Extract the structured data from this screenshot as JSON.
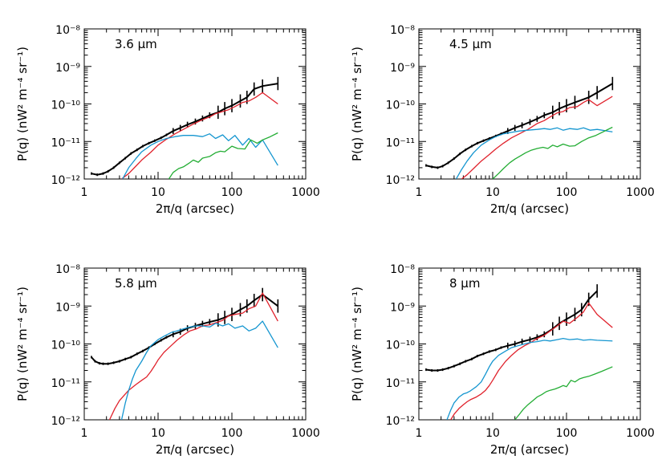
{
  "colors": {
    "black": "#000000",
    "red": "#e0222c",
    "blue": "#1596d0",
    "green": "#23ad34"
  },
  "chart_data": [
    {
      "type": "line",
      "panel_label": "3.6 μm",
      "xlabel": "2π/q (arcsec)",
      "ylabel": "P(q) (nW² m⁻⁴ sr⁻¹)",
      "xscale": "log",
      "yscale": "log",
      "xlim": [
        1,
        1000
      ],
      "ylim": [
        1e-12,
        1e-08
      ],
      "x_ticks": [
        "1",
        "10",
        "100",
        "1000"
      ],
      "y_ticks": [
        "10⁻¹²",
        "10⁻¹¹",
        "10⁻¹⁰",
        "10⁻⁹",
        "10⁻⁸"
      ],
      "series": [
        {
          "color": "black",
          "style": "errorbars",
          "x": [
            1.25,
            1.5,
            1.8,
            2.1,
            2.5,
            3,
            3.6,
            4.3,
            5.2,
            6.2,
            7.5,
            9,
            11,
            13,
            16,
            20,
            25,
            32,
            40,
            50,
            65,
            80,
            100,
            130,
            160,
            200,
            260,
            420
          ],
          "y": [
            1.4e-12,
            1.3e-12,
            1.4e-12,
            1.6e-12,
            2e-12,
            2.7e-12,
            3.6e-12,
            4.8e-12,
            6e-12,
            7.5e-12,
            9e-12,
            1.05e-11,
            1.25e-11,
            1.5e-11,
            1.9e-11,
            2.3e-11,
            2.8e-11,
            3.4e-11,
            4.1e-11,
            5e-11,
            6e-11,
            7.5e-11,
            9e-11,
            1.2e-10,
            1.5e-10,
            2.5e-10,
            3e-10,
            3.5e-10
          ]
        },
        {
          "color": "red",
          "style": "line",
          "x": [
            3.2,
            4,
            5,
            6,
            8,
            10,
            13,
            17,
            22,
            30,
            40,
            50,
            60,
            75,
            90,
            110,
            140,
            170,
            210,
            260,
            420
          ],
          "y": [
            1e-12,
            1.4e-12,
            2.2e-12,
            3.2e-12,
            5.2e-12,
            8e-12,
            1.15e-11,
            1.6e-11,
            2.1e-11,
            2.9e-11,
            3.8e-11,
            4.5e-11,
            5.5e-11,
            6.3e-11,
            7e-11,
            8.5e-11,
            1.1e-10,
            1.2e-10,
            1.5e-10,
            2e-10,
            1e-10
          ]
        },
        {
          "color": "blue",
          "style": "line",
          "x": [
            3.3,
            4,
            5,
            6,
            8,
            10,
            13,
            17,
            22,
            30,
            40,
            50,
            60,
            75,
            90,
            110,
            140,
            170,
            210,
            260,
            420
          ],
          "y": [
            1e-12,
            2e-12,
            3.5e-12,
            5.3e-12,
            8e-12,
            1e-11,
            1.2e-11,
            1.35e-11,
            1.45e-11,
            1.45e-11,
            1.35e-11,
            1.6e-11,
            1.2e-11,
            1.5e-11,
            1.05e-11,
            1.45e-11,
            8e-12,
            1.2e-11,
            7e-12,
            1.1e-11,
            2.3e-12
          ]
        },
        {
          "color": "green",
          "style": "line",
          "x": [
            14,
            16,
            19,
            22,
            26,
            30,
            35,
            40,
            50,
            60,
            70,
            80,
            100,
            120,
            150,
            180,
            220,
            260,
            320,
            420
          ],
          "y": [
            1e-12,
            1.5e-12,
            1.9e-12,
            2.1e-12,
            2.6e-12,
            3.2e-12,
            2.8e-12,
            3.6e-12,
            4e-12,
            5e-12,
            5.5e-12,
            5.3e-12,
            7.5e-12,
            6.5e-12,
            6.3e-12,
            1.1e-11,
            9e-12,
            1.1e-11,
            1.3e-11,
            1.7e-11
          ]
        }
      ]
    },
    {
      "type": "line",
      "panel_label": "4.5 μm",
      "xlabel": "2π/q (arcsec)",
      "ylabel": "P(q) (nW² m⁻⁴ sr⁻¹)",
      "xscale": "log",
      "yscale": "log",
      "xlim": [
        1,
        1000
      ],
      "ylim": [
        1e-12,
        1e-08
      ],
      "x_ticks": [
        "1",
        "10",
        "100",
        "1000"
      ],
      "y_ticks": [
        "10⁻¹²",
        "10⁻¹¹",
        "10⁻¹⁰",
        "10⁻⁹",
        "10⁻⁸"
      ],
      "series": [
        {
          "color": "black",
          "style": "errorbars",
          "x": [
            1.25,
            1.5,
            1.8,
            2.1,
            2.5,
            3,
            3.6,
            4.3,
            5.2,
            6.2,
            7.5,
            9,
            11,
            13,
            16,
            20,
            25,
            32,
            40,
            50,
            65,
            80,
            100,
            130,
            200,
            260,
            420
          ],
          "y": [
            2.3e-12,
            2.1e-12,
            2e-12,
            2.2e-12,
            2.7e-12,
            3.5e-12,
            4.7e-12,
            6e-12,
            7.5e-12,
            9e-12,
            1.05e-11,
            1.2e-11,
            1.4e-11,
            1.6e-11,
            1.9e-11,
            2.3e-11,
            2.7e-11,
            3.3e-11,
            4e-11,
            5e-11,
            6e-11,
            7.5e-11,
            9e-11,
            1.1e-10,
            1.5e-10,
            2e-10,
            3.5e-10
          ]
        },
        {
          "color": "red",
          "style": "line",
          "x": [
            3.8,
            4.5,
            5.5,
            7,
            9,
            11,
            14,
            18,
            23,
            30,
            40,
            50,
            60,
            75,
            90,
            110,
            140,
            170,
            200,
            260,
            420
          ],
          "y": [
            1e-12,
            1.3e-12,
            1.9e-12,
            3e-12,
            4.5e-12,
            6.3e-12,
            9e-12,
            1.25e-11,
            1.6e-11,
            2.1e-11,
            3e-11,
            3.6e-11,
            4.5e-11,
            5.8e-11,
            6.3e-11,
            8e-11,
            8.5e-11,
            1.1e-10,
            1.3e-10,
            9e-11,
            1.6e-10
          ]
        },
        {
          "color": "blue",
          "style": "line",
          "x": [
            3.2,
            3.8,
            4.5,
            5.5,
            7,
            9,
            11,
            14,
            18,
            23,
            30,
            40,
            50,
            60,
            75,
            90,
            110,
            140,
            170,
            210,
            260,
            420
          ],
          "y": [
            1e-12,
            1.8e-12,
            3e-12,
            5e-12,
            8e-12,
            1.1e-11,
            1.35e-11,
            1.6e-11,
            1.75e-11,
            1.9e-11,
            2e-11,
            2.1e-11,
            2.2e-11,
            2.1e-11,
            2.3e-11,
            2e-11,
            2.2e-11,
            2.1e-11,
            2.3e-11,
            2e-11,
            2.1e-11,
            1.8e-11
          ]
        },
        {
          "color": "green",
          "style": "line",
          "x": [
            10,
            12,
            14,
            17,
            20,
            24,
            28,
            33,
            40,
            48,
            56,
            65,
            75,
            90,
            110,
            130,
            160,
            200,
            250,
            420
          ],
          "y": [
            1e-12,
            1.4e-12,
            1.9e-12,
            2.7e-12,
            3.4e-12,
            4.2e-12,
            5e-12,
            5.8e-12,
            6.5e-12,
            7e-12,
            6.5e-12,
            8e-12,
            7.2e-12,
            8.5e-12,
            7.5e-12,
            7.7e-12,
            1e-11,
            1.25e-11,
            1.45e-11,
            2.4e-11
          ]
        }
      ]
    },
    {
      "type": "line",
      "panel_label": "5.8 μm",
      "xlabel": "2π/q (arcsec)",
      "ylabel": "P(q) (nW² m⁻⁴ sr⁻¹)",
      "xscale": "log",
      "yscale": "log",
      "xlim": [
        1,
        1000
      ],
      "ylim": [
        1e-12,
        1e-08
      ],
      "x_ticks": [
        "1",
        "10",
        "100",
        "1000"
      ],
      "y_ticks": [
        "10⁻¹²",
        "10⁻¹¹",
        "10⁻¹⁰",
        "10⁻⁹",
        "10⁻⁸"
      ],
      "series": [
        {
          "color": "black",
          "style": "errorbars",
          "x": [
            1.25,
            1.4,
            1.6,
            1.8,
            2.1,
            2.5,
            3,
            3.6,
            4.3,
            5.2,
            6.2,
            7.5,
            9,
            11,
            13,
            16,
            20,
            25,
            32,
            40,
            50,
            65,
            80,
            100,
            130,
            160,
            200,
            260,
            420
          ],
          "y": [
            4.5e-11,
            3.5e-11,
            3.1e-11,
            3e-11,
            3e-11,
            3.2e-11,
            3.5e-11,
            4e-11,
            4.5e-11,
            5.5e-11,
            6.5e-11,
            8e-11,
            1e-10,
            1.25e-10,
            1.5e-10,
            1.8e-10,
            2.1e-10,
            2.6e-10,
            3e-10,
            3.4e-10,
            3.8e-10,
            4.3e-10,
            5e-10,
            6e-10,
            8e-10,
            1e-09,
            1.4e-09,
            2e-09,
            1e-09
          ]
        },
        {
          "color": "red",
          "style": "line",
          "x": [
            2.2,
            2.6,
            3,
            3.5,
            4,
            4.5,
            5,
            6,
            7,
            8,
            9,
            10,
            12,
            15,
            18,
            22,
            27,
            33,
            40,
            50,
            60,
            75,
            90,
            110,
            140,
            170,
            210,
            260,
            420
          ],
          "y": [
            1e-12,
            2e-12,
            3.2e-12,
            4.5e-12,
            6e-12,
            7.2e-12,
            8.5e-12,
            1.1e-11,
            1.35e-11,
            1.9e-11,
            2.7e-11,
            3.8e-11,
            6e-11,
            9e-11,
            1.25e-10,
            1.7e-10,
            2.2e-10,
            2.5e-10,
            3e-10,
            3.2e-10,
            3.6e-10,
            4.2e-10,
            5.5e-10,
            6e-10,
            6.5e-10,
            8.5e-10,
            1e-09,
            2.2e-09,
            4e-10
          ]
        },
        {
          "color": "blue",
          "style": "line",
          "x": [
            3.2,
            3.6,
            4,
            4.5,
            5,
            6,
            7,
            8,
            10,
            12,
            15,
            18,
            22,
            27,
            33,
            40,
            50,
            60,
            75,
            90,
            110,
            140,
            170,
            210,
            260,
            420
          ],
          "y": [
            1e-12,
            2.8e-12,
            6e-12,
            1.2e-11,
            2e-11,
            3.5e-11,
            6e-11,
            9e-11,
            1.3e-10,
            1.6e-10,
            2e-10,
            2.2e-10,
            2.5e-10,
            2.8e-10,
            3e-10,
            3e-10,
            2.8e-10,
            3.5e-10,
            3e-10,
            3.4e-10,
            2.6e-10,
            3e-10,
            2.2e-10,
            2.6e-10,
            4e-10,
            8e-11
          ]
        }
      ]
    },
    {
      "type": "line",
      "panel_label": "8 μm",
      "xlabel": "2π/q (arcsec)",
      "ylabel": "P(q) (nW² m⁻⁴ sr⁻¹)",
      "xscale": "log",
      "yscale": "log",
      "xlim": [
        1,
        1000
      ],
      "ylim": [
        1e-12,
        1e-08
      ],
      "x_ticks": [
        "1",
        "10",
        "100",
        "1000"
      ],
      "y_ticks": [
        "10⁻¹²",
        "10⁻¹¹",
        "10⁻¹⁰",
        "10⁻⁹",
        "10⁻⁸"
      ],
      "series": [
        {
          "color": "black",
          "style": "errorbars",
          "x": [
            1.25,
            1.5,
            1.8,
            2.1,
            2.5,
            3,
            3.6,
            4.3,
            5.2,
            6.2,
            7.5,
            9,
            11,
            13,
            16,
            20,
            25,
            32,
            40,
            50,
            65,
            80,
            100,
            130,
            160,
            200,
            260
          ],
          "y": [
            2.1e-11,
            2e-11,
            2e-11,
            2.1e-11,
            2.3e-11,
            2.6e-11,
            3e-11,
            3.5e-11,
            4e-11,
            4.8e-11,
            5.5e-11,
            6.3e-11,
            7e-11,
            8e-11,
            9e-11,
            1e-10,
            1.15e-10,
            1.3e-10,
            1.5e-10,
            1.8e-10,
            2.5e-10,
            3.5e-10,
            4.5e-10,
            6e-10,
            8e-10,
            1.5e-09,
            2.5e-09
          ]
        },
        {
          "color": "red",
          "style": "line",
          "x": [
            2.7,
            3,
            3.5,
            4,
            4.5,
            5,
            6,
            7,
            8,
            9,
            10,
            12,
            15,
            18,
            22,
            27,
            33,
            40,
            50,
            60,
            75,
            90,
            110,
            140,
            170,
            200,
            260,
            420
          ],
          "y": [
            1e-12,
            1.4e-12,
            2e-12,
            2.5e-12,
            3e-12,
            3.4e-12,
            4e-12,
            4.8e-12,
            6e-12,
            8e-12,
            1.1e-11,
            2e-11,
            3.5e-11,
            5e-11,
            7e-11,
            9e-11,
            1.1e-10,
            1.4e-10,
            1.7e-10,
            2.2e-10,
            3e-10,
            4e-10,
            3.5e-10,
            5e-10,
            7e-10,
            1.2e-09,
            6e-10,
            2.7e-10
          ]
        },
        {
          "color": "blue",
          "style": "line",
          "x": [
            2.4,
            2.7,
            3,
            3.5,
            4,
            4.5,
            5,
            6,
            7,
            8,
            9,
            10,
            12,
            15,
            18,
            22,
            27,
            33,
            40,
            50,
            60,
            75,
            90,
            110,
            140,
            170,
            210,
            260,
            420
          ],
          "y": [
            1e-12,
            1.8e-12,
            2.8e-12,
            4e-12,
            4.8e-12,
            5.2e-12,
            5.8e-12,
            7.5e-12,
            1e-11,
            1.6e-11,
            2.5e-11,
            3.5e-11,
            5e-11,
            6.5e-11,
            8e-11,
            9e-11,
            1e-10,
            1.1e-10,
            1.15e-10,
            1.25e-10,
            1.2e-10,
            1.3e-10,
            1.4e-10,
            1.3e-10,
            1.35e-10,
            1.25e-10,
            1.3e-10,
            1.25e-10,
            1.2e-10
          ]
        },
        {
          "color": "green",
          "style": "line",
          "x": [
            20,
            23,
            26,
            30,
            35,
            40,
            46,
            53,
            60,
            70,
            80,
            90,
            100,
            115,
            130,
            150,
            170,
            200,
            240,
            300,
            420
          ],
          "y": [
            1e-12,
            1.4e-12,
            1.9e-12,
            2.5e-12,
            3.2e-12,
            4e-12,
            4.6e-12,
            5.5e-12,
            6e-12,
            6.5e-12,
            7.2e-12,
            8e-12,
            7.5e-12,
            1.1e-11,
            1e-11,
            1.2e-11,
            1.3e-11,
            1.4e-11,
            1.6e-11,
            1.9e-11,
            2.5e-11
          ]
        }
      ]
    }
  ]
}
